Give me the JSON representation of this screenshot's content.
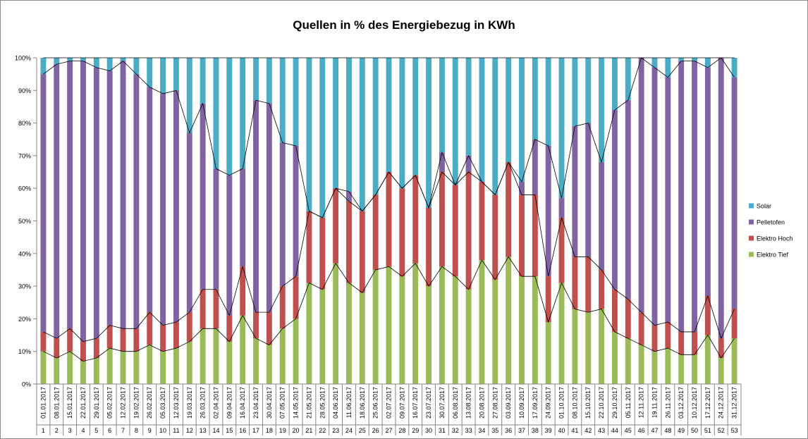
{
  "chart_data": {
    "type": "bar",
    "stacked": true,
    "title": "Quellen in % des Energiebezug in KWh",
    "ylim": [
      0,
      100
    ],
    "y_ticks": [
      "0%",
      "10%",
      "20%",
      "30%",
      "40%",
      "50%",
      "60%",
      "70%",
      "80%",
      "90%",
      "100%"
    ],
    "grid": false,
    "legend_position": "right",
    "series_lines": true,
    "categories": [
      "1",
      "2",
      "3",
      "4",
      "5",
      "6",
      "7",
      "8",
      "9",
      "10",
      "11",
      "12",
      "13",
      "14",
      "15",
      "16",
      "17",
      "18",
      "19",
      "20",
      "21",
      "22",
      "23",
      "24",
      "25",
      "26",
      "27",
      "28",
      "29",
      "30",
      "31",
      "32",
      "33",
      "34",
      "35",
      "36",
      "37",
      "38",
      "39",
      "40",
      "41",
      "42",
      "43",
      "44",
      "45",
      "46",
      "47",
      "48",
      "49",
      "50",
      "51",
      "52",
      "53"
    ],
    "dates": [
      "01.01.2017",
      "08.01.2017",
      "15.01.2017",
      "22.01.2017",
      "29.01.2017",
      "05.02.2017",
      "12.02.2017",
      "19.02.2017",
      "26.02.2017",
      "05.03.2017",
      "12.03.2017",
      "19.03.2017",
      "26.03.2017",
      "02.04.2017",
      "09.04.2017",
      "16.04.2017",
      "23.04.2017",
      "30.04.2017",
      "07.05.2017",
      "14.05.2017",
      "21.05.2017",
      "28.05.2017",
      "04.06.2017",
      "11.06.2017",
      "18.06.2017",
      "25.06.2017",
      "02.07.2017",
      "09.07.2017",
      "16.07.2017",
      "23.07.2017",
      "30.07.2017",
      "06.08.2017",
      "13.08.2017",
      "20.08.2017",
      "27.08.2017",
      "03.09.2017",
      "10.09.2017",
      "17.09.2017",
      "24.09.2017",
      "01.10.2017",
      "08.10.2017",
      "15.10.2017",
      "22.10.2017",
      "29.10.2017",
      "05.11.2017",
      "12.11.2017",
      "19.11.2017",
      "26.11.2017",
      "03.12.2017",
      "10.12.2017",
      "17.12.2017",
      "24.12.2017",
      "31.12.2017"
    ],
    "series": [
      {
        "name": "Elektro Tief",
        "color": "#9bbb59",
        "values": [
          10,
          8,
          10,
          7,
          8,
          11,
          10,
          10,
          12,
          10,
          11,
          13,
          17,
          17,
          13,
          21,
          14,
          12,
          17,
          20,
          31,
          29,
          37,
          31,
          28,
          35,
          36,
          33,
          37,
          30,
          36,
          33,
          29,
          38,
          32,
          39,
          33,
          33,
          19,
          31,
          23,
          22,
          23,
          16,
          14,
          12,
          10,
          11,
          9,
          9,
          15,
          8,
          14
        ]
      },
      {
        "name": "Elektro Hoch",
        "color": "#c0504d",
        "values": [
          6,
          6,
          7,
          6,
          6,
          7,
          7,
          7,
          10,
          8,
          8,
          9,
          12,
          12,
          8,
          15,
          8,
          10,
          13,
          13,
          22,
          22,
          23,
          25,
          25,
          23,
          29,
          27,
          27,
          24,
          29,
          28,
          36,
          24,
          26,
          29,
          25,
          25,
          14,
          20,
          16,
          17,
          12,
          13,
          12,
          10,
          8,
          8,
          7,
          7,
          12,
          6,
          9
        ]
      },
      {
        "name": "Pelletofen",
        "color": "#8064a2",
        "values": [
          79,
          84,
          82,
          86,
          83,
          78,
          82,
          78,
          69,
          71,
          71,
          55,
          57,
          37,
          43,
          30,
          65,
          64,
          44,
          40,
          0,
          0,
          0,
          3,
          0,
          0,
          0,
          0,
          0,
          0,
          6,
          0,
          5,
          0,
          0,
          0,
          4,
          17,
          40,
          6,
          40,
          41,
          33,
          55,
          61,
          78,
          79,
          75,
          83,
          83,
          70,
          86,
          71
        ]
      },
      {
        "name": "Solar",
        "color": "#4bacc6",
        "values": [
          5,
          2,
          1,
          1,
          3,
          4,
          1,
          5,
          9,
          11,
          10,
          23,
          14,
          34,
          36,
          34,
          13,
          14,
          26,
          27,
          47,
          49,
          40,
          41,
          47,
          42,
          35,
          40,
          36,
          46,
          29,
          39,
          30,
          38,
          42,
          32,
          38,
          25,
          27,
          43,
          21,
          20,
          32,
          16,
          13,
          0,
          3,
          6,
          1,
          1,
          3,
          0,
          6
        ]
      }
    ],
    "legend_order": [
      "Solar",
      "Pelletofen",
      "Elektro Hoch",
      "Elektro Tief"
    ]
  }
}
